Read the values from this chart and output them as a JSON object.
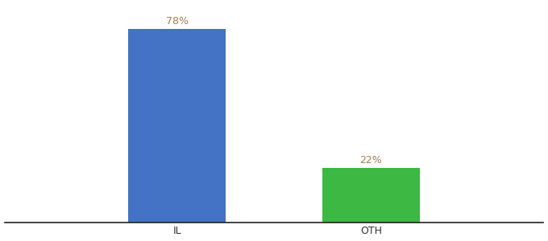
{
  "categories": [
    "IL",
    "OTH"
  ],
  "values": [
    78,
    22
  ],
  "bar_colors": [
    "#4472c4",
    "#3cb843"
  ],
  "label_color": "#a08050",
  "labels": [
    "78%",
    "22%"
  ],
  "background_color": "#ffffff",
  "ylim": [
    0,
    88
  ],
  "bar_width": 0.18,
  "label_fontsize": 9,
  "tick_fontsize": 9,
  "x_positions": [
    0.32,
    0.68
  ],
  "xlim": [
    0.0,
    1.0
  ]
}
